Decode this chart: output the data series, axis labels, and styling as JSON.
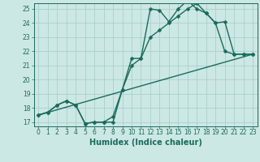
{
  "title": "",
  "xlabel": "Humidex (Indice chaleur)",
  "ylabel": "",
  "bg_color": "#cce8e4",
  "grid_color": "#aacfcb",
  "line_color": "#1a6b5a",
  "x_min": -0.5,
  "x_max": 23.5,
  "y_min": 16.7,
  "y_max": 25.4,
  "x_ticks": [
    0,
    1,
    2,
    3,
    4,
    5,
    6,
    7,
    8,
    9,
    10,
    11,
    12,
    13,
    14,
    15,
    16,
    17,
    18,
    19,
    20,
    21,
    22,
    23
  ],
  "y_ticks": [
    17,
    18,
    19,
    20,
    21,
    22,
    23,
    24,
    25
  ],
  "series1_x": [
    0,
    1,
    2,
    3,
    4,
    5,
    6,
    7,
    8,
    9,
    10,
    11,
    12,
    13,
    14,
    15,
    16,
    17,
    18,
    19,
    20,
    21,
    22,
    23
  ],
  "series1_y": [
    17.5,
    17.7,
    18.2,
    18.5,
    18.2,
    16.9,
    17.0,
    17.0,
    17.0,
    19.3,
    21.5,
    21.5,
    25.0,
    24.9,
    24.1,
    25.0,
    25.6,
    25.0,
    24.7,
    24.0,
    22.0,
    21.8,
    21.8,
    21.8
  ],
  "series2_x": [
    0,
    1,
    2,
    3,
    4,
    5,
    6,
    7,
    8,
    9,
    10,
    11,
    12,
    13,
    14,
    15,
    16,
    17,
    18,
    19,
    20,
    21,
    22,
    23
  ],
  "series2_y": [
    17.5,
    17.7,
    18.2,
    18.5,
    18.2,
    16.9,
    17.0,
    17.0,
    17.4,
    19.3,
    21.0,
    21.5,
    23.0,
    23.5,
    24.0,
    24.5,
    25.0,
    25.4,
    24.7,
    24.0,
    24.1,
    21.8,
    21.8,
    21.8
  ],
  "series3_x": [
    0,
    23
  ],
  "series3_y": [
    17.5,
    21.8
  ],
  "marker_size": 2.5,
  "linewidth": 1.0,
  "tick_fontsize": 5.5,
  "xlabel_fontsize": 7
}
